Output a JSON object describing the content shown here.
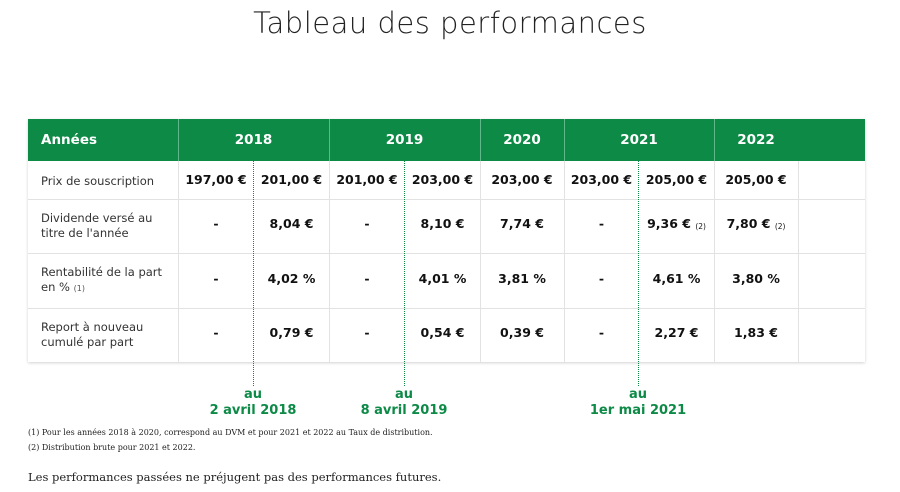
{
  "page_title": "Tableau des performances",
  "table": {
    "header": {
      "label": "Années",
      "years": [
        "2018",
        "2019",
        "2020",
        "2021",
        "2022"
      ]
    },
    "rows": [
      {
        "label": "Prix de souscription",
        "values": [
          "197,00 €",
          "201,00 €",
          "201,00 €",
          "203,00 €",
          "203,00 €",
          "203,00 €",
          "205,00 €",
          "205,00 €"
        ],
        "notes": [
          "",
          "",
          "",
          "",
          "",
          "",
          "",
          ""
        ]
      },
      {
        "label": "Dividende versé au titre de l'année",
        "values": [
          "-",
          "8,04 €",
          "-",
          "8,10 €",
          "7,74 €",
          "-",
          "9,36 €",
          "7,80 €"
        ],
        "notes": [
          "",
          "",
          "",
          "",
          "",
          "",
          "(2)",
          "(2)"
        ]
      },
      {
        "label": "Rentabilité de la part en %",
        "label_note": "(1)",
        "values": [
          "-",
          "4,02 %",
          "-",
          "4,01 %",
          "3,81 %",
          "-",
          "4,61 %",
          "3,80 %"
        ],
        "notes": [
          "",
          "",
          "",
          "",
          "",
          "",
          "",
          ""
        ]
      },
      {
        "label": "Report à nouveau cumulé par part",
        "values": [
          "-",
          "0,79 €",
          "-",
          "0,54 €",
          "0,39 €",
          "-",
          "2,27 €",
          "1,83 €"
        ],
        "notes": [
          "",
          "",
          "",
          "",
          "",
          "",
          "",
          ""
        ]
      }
    ]
  },
  "markers": [
    {
      "line1": "au",
      "line2": "2 avril 2018"
    },
    {
      "line1": "au",
      "line2": "8 avril 2019"
    },
    {
      "line1": "au",
      "line2": "1er mai 2021"
    }
  ],
  "footnotes": [
    "(1) Pour les années 2018 à 2020, correspond au DVM et pour 2021 et 2022 au Taux de distribution.",
    "(2) Distribution brute pour 2021 et 2022."
  ],
  "disclaimer": "Les performances passées ne préjugent pas des performances futures.",
  "colors": {
    "accent": "#0c8a46"
  }
}
